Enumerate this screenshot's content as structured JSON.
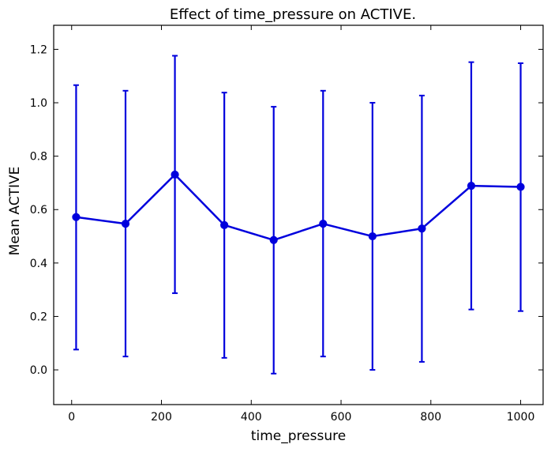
{
  "chart_data": {
    "type": "line",
    "title": "Effect of time_pressure on ACTIVE.",
    "xlabel": "time_pressure",
    "ylabel": "Mean ACTIVE",
    "xlim": [
      -40,
      1050
    ],
    "ylim": [
      -0.13,
      1.29
    ],
    "xticks": [
      0,
      200,
      400,
      600,
      800,
      1000
    ],
    "yticks": [
      0.0,
      0.2,
      0.4,
      0.6,
      0.8,
      1.0,
      1.2
    ],
    "grid": false,
    "color": "#0000dd",
    "series": [
      {
        "x": [
          10,
          120,
          230,
          340,
          450,
          560,
          670,
          780,
          890,
          1000
        ],
        "values": [
          0.572,
          0.547,
          0.731,
          0.542,
          0.486,
          0.547,
          0.5,
          0.529,
          0.689,
          0.685
        ],
        "error_low": [
          0.076,
          0.05,
          0.287,
          0.045,
          -0.014,
          0.05,
          0.0,
          0.03,
          0.226,
          0.22
        ],
        "error_high": [
          1.066,
          1.045,
          1.176,
          1.038,
          0.985,
          1.045,
          1.0,
          1.027,
          1.152,
          1.148
        ]
      }
    ]
  }
}
